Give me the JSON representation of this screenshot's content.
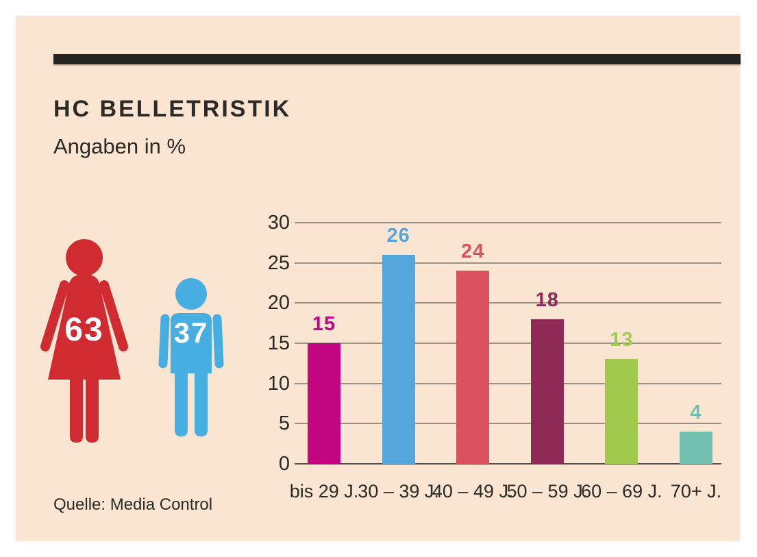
{
  "header": {
    "title": "HC BELLETRISTIK",
    "subtitle": "Angaben in %"
  },
  "source": "Quelle: Media Control",
  "gender_split": {
    "female": {
      "value": "63",
      "color": "#d02b31"
    },
    "male": {
      "value": "37",
      "color": "#47aee2"
    }
  },
  "chart_data": {
    "type": "bar",
    "title": "HC BELLETRISTIK",
    "units_note": "Angaben in %",
    "categories": [
      "bis 29 J.",
      "30 – 39 J.",
      "40 – 49 J.",
      "50 – 59 J.",
      "60 – 69 J.",
      "70+ J."
    ],
    "values": [
      15,
      26,
      24,
      18,
      13,
      4
    ],
    "bar_colors": [
      "#c20682",
      "#54a6dc",
      "#d9525e",
      "#8e2a55",
      "#a1c94e",
      "#74c0b0"
    ],
    "value_labels": true,
    "ylim": [
      0,
      30
    ],
    "yticks": [
      0,
      5,
      10,
      15,
      20,
      25,
      30
    ],
    "grid": true,
    "legend": "none",
    "source": "Quelle: Media Control"
  },
  "style": {
    "panel_bg": "#f9e5d1",
    "rule_color": "#272424",
    "text_dark": "#2d2925",
    "grid_color": "#847c72",
    "baseline_color": "#55504a"
  }
}
